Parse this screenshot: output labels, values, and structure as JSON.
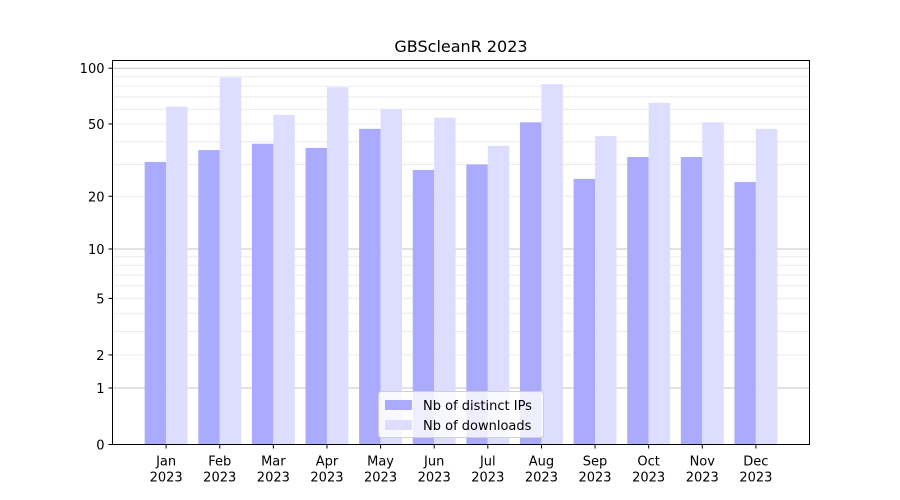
{
  "chart_data": {
    "type": "bar",
    "title": "GBScleanR 2023",
    "xlabel": "",
    "ylabel": "",
    "yscale": "log10(y+1)",
    "ylim": [
      0,
      110
    ],
    "yticks": [
      0,
      1,
      2,
      5,
      10,
      20,
      50,
      100
    ],
    "grid": true,
    "legend_position": "bottom-center",
    "categories": [
      "Jan\n2023",
      "Feb\n2023",
      "Mar\n2023",
      "Apr\n2023",
      "May\n2023",
      "Jun\n2023",
      "Jul\n2023",
      "Aug\n2023",
      "Sep\n2023",
      "Oct\n2023",
      "Nov\n2023",
      "Dec\n2023"
    ],
    "series": [
      {
        "name": "Nb of distinct IPs",
        "color": "#aaaaff",
        "values": [
          31,
          36,
          39,
          37,
          47,
          28,
          30,
          51,
          25,
          33,
          33,
          24
        ]
      },
      {
        "name": "Nb of downloads",
        "color": "#ddddff",
        "values": [
          62,
          89,
          56,
          79,
          60,
          54,
          38,
          82,
          43,
          65,
          51,
          47
        ]
      }
    ]
  }
}
